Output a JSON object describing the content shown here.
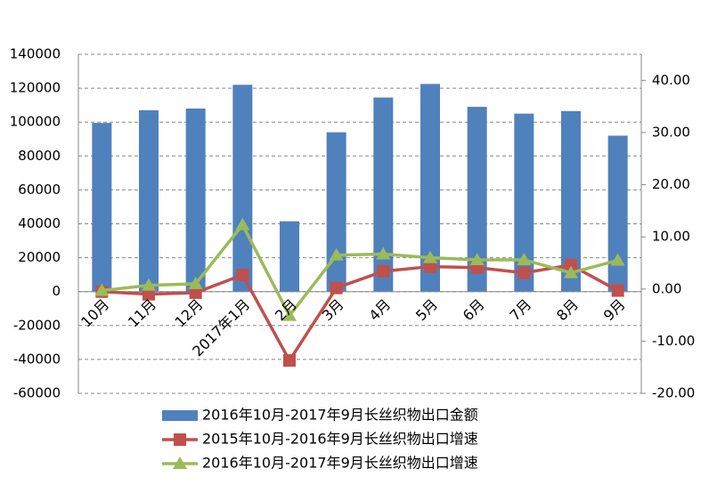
{
  "chart_data": {
    "type": "bar-line",
    "categories": [
      "10月",
      "11月",
      "12月",
      "2017年1月",
      "2月",
      "3月",
      "4月",
      "5月",
      "6月",
      "7月",
      "8月",
      "9月"
    ],
    "series": [
      {
        "name": "2016年10月-2017年9月长丝织物出口金额",
        "type": "bar",
        "color": "#4f81bd",
        "values": [
          99500,
          107000,
          108000,
          122000,
          41500,
          94000,
          114500,
          122500,
          109000,
          105000,
          106500,
          92000
        ]
      },
      {
        "name": "2015年10月-2016年9月长丝织物出口增速",
        "type": "line",
        "axis": "y2",
        "color": "#c0504d",
        "marker": "square",
        "values": [
          -0.5,
          -1.0,
          -0.7,
          2.7,
          -13.7,
          0.2,
          3.4,
          4.3,
          4.1,
          3.1,
          4.6,
          -0.3
        ]
      },
      {
        "name": "2016年10月-2017年9月长丝织物出口增速",
        "type": "line",
        "axis": "y2",
        "color": "#9bbb59",
        "marker": "triangle",
        "values": [
          -0.3,
          0.7,
          1.0,
          12.3,
          -5.1,
          6.5,
          6.7,
          6.0,
          5.6,
          5.6,
          3.1,
          5.5
        ]
      }
    ],
    "ylim": [
      -60000,
      140000
    ],
    "yticks": [
      -60000,
      -40000,
      -20000,
      0,
      20000,
      40000,
      60000,
      80000,
      100000,
      120000,
      140000
    ],
    "y2lim": [
      -20,
      45
    ],
    "y2ticks": [
      {
        "value": -20,
        "label": "-20.00"
      },
      {
        "value": -10,
        "label": "-10.00"
      },
      {
        "value": 0,
        "label": "0.00"
      },
      {
        "value": 10,
        "label": "10.00"
      },
      {
        "value": 20,
        "label": "20.00"
      },
      {
        "value": 30,
        "label": "30.00"
      },
      {
        "value": 40,
        "label": "40.00"
      }
    ],
    "grid": true,
    "legend": "bottom"
  }
}
